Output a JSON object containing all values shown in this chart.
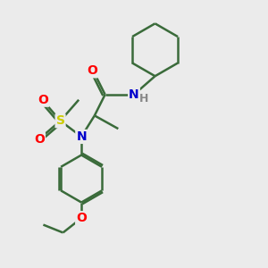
{
  "background_color": "#ebebeb",
  "bond_color": "#3a6b3a",
  "bond_width": 1.8,
  "atom_colors": {
    "O": "#ff0000",
    "N": "#0000cc",
    "S": "#cccc00",
    "H": "#888888"
  },
  "font_size_atom": 10,
  "font_size_h": 9,
  "figsize": [
    3.0,
    3.0
  ],
  "dpi": 100
}
